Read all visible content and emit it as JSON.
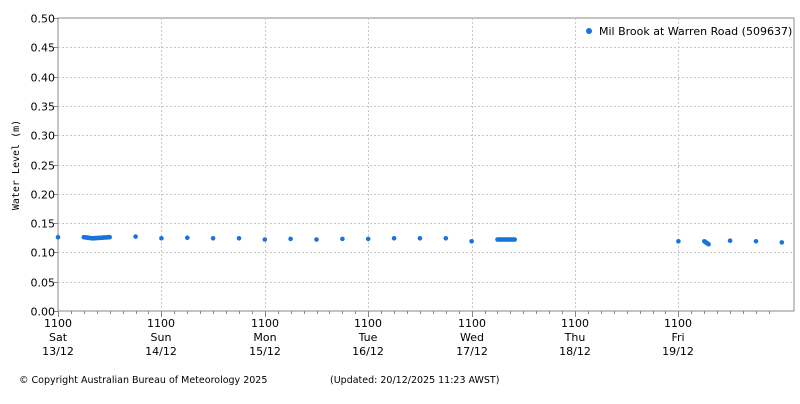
{
  "chart_data": {
    "type": "scatter",
    "title": "",
    "ylabel": "Water Level (m)",
    "xlabel": "",
    "ylim": [
      0,
      0.5
    ],
    "y_ticks": [
      "0.00",
      "0.05",
      "0.10",
      "0.15",
      "0.20",
      "0.25",
      "0.30",
      "0.35",
      "0.40",
      "0.45",
      "0.50"
    ],
    "x_range": [
      "2025-12-13 11:00",
      "2025-12-20 11:00"
    ],
    "x_ticks": [
      {
        "time": "1100",
        "day": "Sat",
        "date": "13/12"
      },
      {
        "time": "1100",
        "day": "Sun",
        "date": "14/12"
      },
      {
        "time": "1100",
        "day": "Mon",
        "date": "15/12"
      },
      {
        "time": "1100",
        "day": "Tue",
        "date": "16/12"
      },
      {
        "time": "1100",
        "day": "Wed",
        "date": "17/12"
      },
      {
        "time": "1100",
        "day": "Thu",
        "date": "18/12"
      },
      {
        "time": "1100",
        "day": "Fri",
        "date": "19/12"
      }
    ],
    "grid": true,
    "legend_position": "top-right",
    "series": [
      {
        "name": "Mil Brook at Warren Road (509637)",
        "color": "#1874dc",
        "x": [
          "2025-12-13 11:00",
          "2025-12-13 17:00",
          "2025-12-13 19:00",
          "2025-12-13 23:00",
          "2025-12-14 05:00",
          "2025-12-14 11:00",
          "2025-12-14 17:00",
          "2025-12-14 23:00",
          "2025-12-15 05:00",
          "2025-12-15 11:00",
          "2025-12-15 17:00",
          "2025-12-15 23:00",
          "2025-12-16 05:00",
          "2025-12-16 11:00",
          "2025-12-16 17:00",
          "2025-12-16 23:00",
          "2025-12-17 05:00",
          "2025-12-17 11:00",
          "2025-12-17 17:00",
          "2025-12-17 21:00",
          "2025-12-19 11:00",
          "2025-12-19 17:00",
          "2025-12-19 18:00",
          "2025-12-19 23:00",
          "2025-12-20 05:00",
          "2025-12-20 11:00"
        ],
        "y": [
          0.126,
          0.126,
          0.124,
          0.126,
          0.127,
          0.124,
          0.125,
          0.124,
          0.124,
          0.122,
          0.123,
          0.122,
          0.123,
          0.123,
          0.124,
          0.124,
          0.124,
          0.119,
          0.122,
          0.122,
          0.119,
          0.119,
          0.114,
          0.12,
          0.119,
          0.117
        ]
      }
    ]
  },
  "footer": {
    "copyright": "© Copyright Australian Bureau of Meteorology 2025",
    "updated": "(Updated: 20/12/2025 11:23 AWST)"
  }
}
